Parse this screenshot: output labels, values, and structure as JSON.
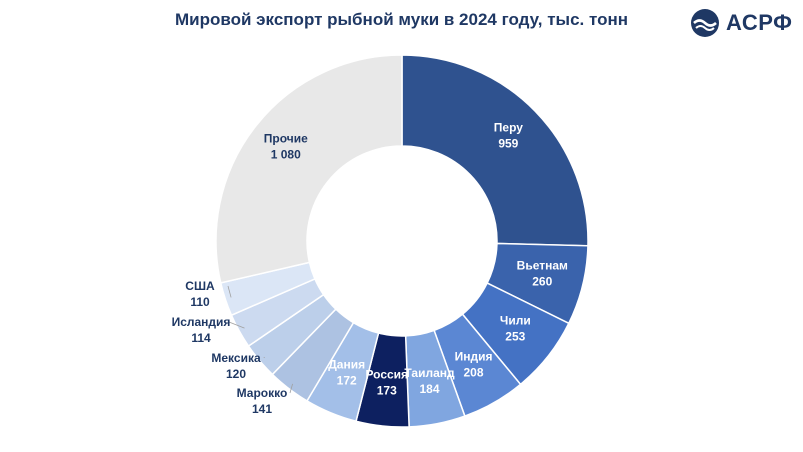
{
  "header": {
    "title": "Мировой экспорт рыбной муки в 2024 году, тыс. тонн",
    "logo_text": "АСРФ"
  },
  "colors": {
    "title": "#1f3864",
    "logo_blue": "#1f3864"
  },
  "chart_data": {
    "type": "pie",
    "variant": "donut",
    "title": "Мировой экспорт рыбной муки в 2024 году, тыс. тонн",
    "legend": "none",
    "slices": [
      {
        "label": "Перу",
        "value": 959,
        "value_label": "959",
        "color": "#2f528f",
        "text_color": "#ffffff"
      },
      {
        "label": "Вьетнам",
        "value": 260,
        "value_label": "260",
        "color": "#3a63ac",
        "text_color": "#ffffff"
      },
      {
        "label": "Чили",
        "value": 253,
        "value_label": "253",
        "color": "#4472c4",
        "text_color": "#ffffff"
      },
      {
        "label": "Индия",
        "value": 208,
        "value_label": "208",
        "color": "#5b87d3",
        "text_color": "#ffffff"
      },
      {
        "label": "Таиланд",
        "value": 184,
        "value_label": "184",
        "color": "#80a6e0",
        "text_color": "#ffffff"
      },
      {
        "label": "Россия",
        "value": 173,
        "value_label": "173",
        "color": "#0d2060",
        "text_color": "#ffffff"
      },
      {
        "label": "Дания",
        "value": 172,
        "value_label": "172",
        "color": "#a3bfe8",
        "text_color": "#ffffff"
      },
      {
        "label": "Марокко",
        "value": 141,
        "value_label": "141",
        "color": "#adc2e2",
        "text_color": "#1f3864"
      },
      {
        "label": "Мексика",
        "value": 120,
        "value_label": "120",
        "color": "#bccfea",
        "text_color": "#1f3864"
      },
      {
        "label": "Исландия",
        "value": 114,
        "value_label": "114",
        "color": "#ccdaf0",
        "text_color": "#1f3864"
      },
      {
        "label": "США",
        "value": 110,
        "value_label": "110",
        "color": "#dbe6f6",
        "text_color": "#1f3864"
      },
      {
        "label": "Прочие",
        "value": 1080,
        "value_label": "1 080",
        "color": "#e8e8e8",
        "text_color": "#1f3864"
      }
    ]
  }
}
